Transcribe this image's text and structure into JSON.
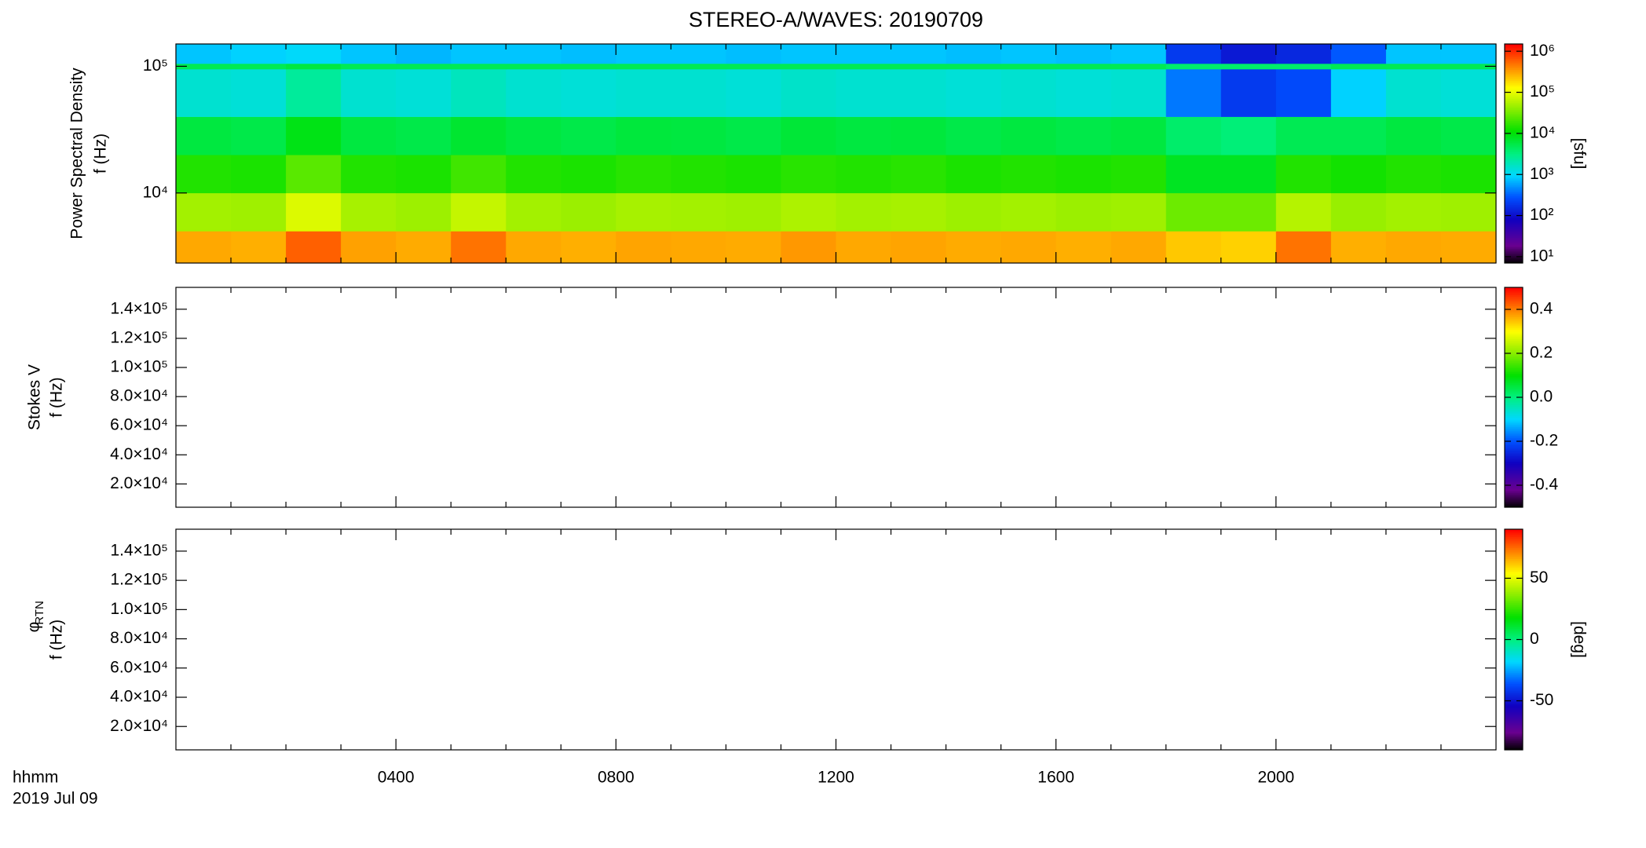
{
  "chart_data": [
    {
      "type": "heatmap",
      "title": "STEREO-A/WAVES: 20190709",
      "ylabel": [
        "Power Spectral Density",
        "f (Hz)"
      ],
      "xlim": [
        0,
        24
      ],
      "xticks": [
        4,
        8,
        12,
        16,
        20
      ],
      "xminorticks": [
        1,
        2,
        3,
        5,
        6,
        7,
        9,
        10,
        11,
        13,
        14,
        15,
        17,
        18,
        19,
        21,
        22,
        23
      ],
      "ylog": true,
      "ylim": [
        2800,
        150000
      ],
      "yticks": [
        {
          "value": 10000,
          "label": "10⁴"
        },
        {
          "value": 100000,
          "label": "10⁵"
        }
      ],
      "x_edges": [
        0,
        1,
        2,
        3,
        4,
        5,
        6,
        7,
        8,
        9,
        10,
        11,
        12,
        13,
        14,
        15,
        16,
        17,
        18,
        19,
        20,
        21,
        22,
        23,
        24
      ],
      "y_edges": [
        2800,
        5000,
        10000,
        20000,
        40000,
        95000,
        105000,
        150000
      ],
      "z": [
        [
          300000,
          280000,
          600000,
          320000,
          290000,
          500000,
          300000,
          280000,
          310000,
          300000,
          290000,
          350000,
          300000,
          310000,
          290000,
          300000,
          280000,
          300000,
          220000,
          200000,
          500000,
          280000,
          300000,
          290000
        ],
        [
          50000,
          48000,
          90000,
          52000,
          47000,
          70000,
          50000,
          46000,
          52000,
          50000,
          48000,
          55000,
          50000,
          52000,
          47000,
          50000,
          46000,
          48000,
          30000,
          30000,
          60000,
          45000,
          50000,
          48000
        ],
        [
          15000,
          14000,
          25000,
          15000,
          14000,
          20000,
          15000,
          14000,
          16000,
          15000,
          14000,
          16000,
          15000,
          16000,
          14000,
          15000,
          14000,
          15000,
          8000,
          8000,
          15000,
          13000,
          15000,
          14000
        ],
        [
          6000,
          5500,
          9000,
          6000,
          5500,
          7000,
          6000,
          5500,
          6200,
          6000,
          5500,
          6500,
          6000,
          6200,
          5500,
          6000,
          5500,
          6000,
          4000,
          3500,
          5000,
          5000,
          6000,
          5500
        ],
        [
          1500,
          1400,
          2500,
          1500,
          1400,
          1800,
          1500,
          1400,
          1500,
          1500,
          1400,
          1600,
          1500,
          1500,
          1400,
          1500,
          1400,
          1500,
          400,
          200,
          250,
          900,
          1500,
          1400
        ],
        [
          5000,
          5000,
          6000,
          5000,
          5000,
          5000,
          5000,
          5000,
          5000,
          5000,
          5000,
          5000,
          5000,
          5000,
          5000,
          5000,
          5000,
          5000,
          4000,
          4000,
          4000,
          5000,
          5000,
          5000
        ],
        [
          800,
          900,
          1000,
          800,
          700,
          800,
          800,
          750,
          800,
          800,
          750,
          800,
          800,
          800,
          750,
          800,
          750,
          800,
          200,
          120,
          150,
          300,
          800,
          800
        ]
      ],
      "colormap": "rainbow",
      "clog": true,
      "clim": [
        7,
        1500000
      ],
      "cticks": [
        {
          "value": 10,
          "label": "10¹"
        },
        {
          "value": 100,
          "label": "10²"
        },
        {
          "value": 1000,
          "label": "10³"
        },
        {
          "value": 10000,
          "label": "10⁴"
        },
        {
          "value": 100000,
          "label": "10⁵"
        },
        {
          "value": 1000000,
          "label": "10⁶"
        }
      ],
      "clabel": "[sfu]"
    },
    {
      "type": "heatmap",
      "ylabel": [
        "Stokes V",
        "f (Hz)"
      ],
      "xlim": [
        0,
        24
      ],
      "xticks": [
        4,
        8,
        12,
        16,
        20
      ],
      "xminorticks": [
        1,
        2,
        3,
        5,
        6,
        7,
        9,
        10,
        11,
        13,
        14,
        15,
        17,
        18,
        19,
        21,
        22,
        23
      ],
      "ylog": false,
      "ylim": [
        4000,
        155000
      ],
      "yticks": [
        {
          "value": 20000,
          "label": "2.0×10⁴"
        },
        {
          "value": 40000,
          "label": "4.0×10⁴"
        },
        {
          "value": 60000,
          "label": "6.0×10⁴"
        },
        {
          "value": 80000,
          "label": "8.0×10⁴"
        },
        {
          "value": 100000,
          "label": "1.0×10⁵"
        },
        {
          "value": 120000,
          "label": "1.2×10⁵"
        },
        {
          "value": 140000,
          "label": "1.4×10⁵"
        }
      ],
      "colormap": "rainbow",
      "clog": false,
      "clim": [
        -0.5,
        0.5
      ],
      "cticks": [
        -0.4,
        -0.2,
        {
          "value": 0,
          "label": "0.0"
        },
        0.2,
        0.4
      ]
    },
    {
      "type": "heatmap",
      "ylabel_symbol": "φ",
      "ylabel_subscript": "RTN",
      "ylabel": [
        "f (Hz)"
      ],
      "xlabel": [
        "hhmm",
        "2019 Jul 09"
      ],
      "xlim": [
        0,
        24
      ],
      "xticks": [
        {
          "value": 4,
          "label": "0400"
        },
        {
          "value": 8,
          "label": "0800"
        },
        {
          "value": 12,
          "label": "1200"
        },
        {
          "value": 16,
          "label": "1600"
        },
        {
          "value": 20,
          "label": "2000"
        }
      ],
      "xminorticks": [
        1,
        2,
        3,
        5,
        6,
        7,
        9,
        10,
        11,
        13,
        14,
        15,
        17,
        18,
        19,
        21,
        22,
        23
      ],
      "ylog": false,
      "ylim": [
        4000,
        155000
      ],
      "yticks": [
        {
          "value": 20000,
          "label": "2.0×10⁴"
        },
        {
          "value": 40000,
          "label": "4.0×10⁴"
        },
        {
          "value": 60000,
          "label": "6.0×10⁴"
        },
        {
          "value": 80000,
          "label": "8.0×10⁴"
        },
        {
          "value": 100000,
          "label": "1.0×10⁵"
        },
        {
          "value": 120000,
          "label": "1.2×10⁵"
        },
        {
          "value": 140000,
          "label": "1.4×10⁵"
        }
      ],
      "colormap": "rainbow",
      "clog": false,
      "clim": [
        -90,
        90
      ],
      "cticks": [
        -50,
        0,
        50
      ],
      "clabel": "[deg]"
    }
  ]
}
